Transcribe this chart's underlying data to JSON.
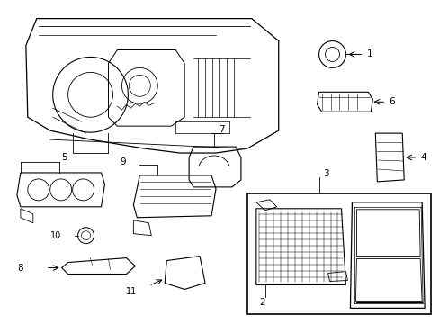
{
  "background_color": "#ffffff",
  "fig_width": 4.89,
  "fig_height": 3.6,
  "dpi": 100,
  "line_color": "#000000",
  "text_color": "#000000",
  "label_fontsize": 7.5
}
